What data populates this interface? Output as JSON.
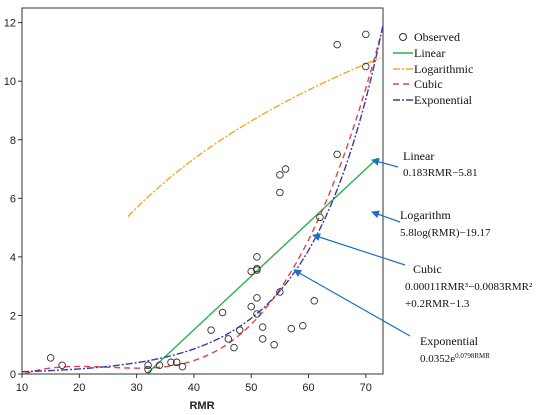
{
  "chart_data": {
    "type": "scatter",
    "title": "",
    "xlabel": "RMR",
    "ylabel": "",
    "xlim": [
      10,
      73
    ],
    "ylim": [
      0,
      12.5
    ],
    "xticks": [
      10,
      20,
      30,
      40,
      50,
      60,
      70
    ],
    "yticks": [
      0,
      2,
      4,
      6,
      8,
      10,
      12
    ],
    "grid": false,
    "legend_position": "top-right",
    "observed": {
      "name": "Observed",
      "color": "#333333",
      "points": [
        {
          "x": 15,
          "y": 0.55
        },
        {
          "x": 17,
          "y": 0.3
        },
        {
          "x": 32,
          "y": 0.15
        },
        {
          "x": 32,
          "y": 0.3
        },
        {
          "x": 34,
          "y": 0.3
        },
        {
          "x": 36,
          "y": 0.4
        },
        {
          "x": 37,
          "y": 0.4
        },
        {
          "x": 38,
          "y": 0.25
        },
        {
          "x": 43,
          "y": 1.5
        },
        {
          "x": 45,
          "y": 2.1
        },
        {
          "x": 46,
          "y": 1.2
        },
        {
          "x": 47,
          "y": 0.9
        },
        {
          "x": 48,
          "y": 1.5
        },
        {
          "x": 50,
          "y": 2.3
        },
        {
          "x": 50,
          "y": 3.5
        },
        {
          "x": 51,
          "y": 3.6
        },
        {
          "x": 51,
          "y": 3.55
        },
        {
          "x": 51,
          "y": 4.0
        },
        {
          "x": 51,
          "y": 2.6
        },
        {
          "x": 51,
          "y": 2.05
        },
        {
          "x": 52,
          "y": 1.2
        },
        {
          "x": 52,
          "y": 1.6
        },
        {
          "x": 54,
          "y": 1.0
        },
        {
          "x": 55,
          "y": 2.8
        },
        {
          "x": 55,
          "y": 6.2
        },
        {
          "x": 55,
          "y": 6.8
        },
        {
          "x": 56,
          "y": 7.0
        },
        {
          "x": 57,
          "y": 1.55
        },
        {
          "x": 59,
          "y": 1.65
        },
        {
          "x": 61,
          "y": 2.5
        },
        {
          "x": 62,
          "y": 5.35
        },
        {
          "x": 65,
          "y": 7.5
        },
        {
          "x": 65,
          "y": 11.25
        },
        {
          "x": 70,
          "y": 10.5
        },
        {
          "x": 70,
          "y": 11.6
        }
      ]
    },
    "fits": [
      {
        "name": "Linear",
        "color": "#2bb24c",
        "dash": "solid"
      },
      {
        "name": "Logarithmic",
        "color": "#f5a623",
        "dash": "dashdot"
      },
      {
        "name": "Cubic",
        "color": "#e2424c",
        "dash": "dash"
      },
      {
        "name": "Exponential",
        "color": "#3a3aa8",
        "dash": "dashdot"
      }
    ],
    "annotations": [
      {
        "title": "Linear",
        "lines": [
          "0.183RMR−5.81"
        ],
        "color": "#1f6fbf"
      },
      {
        "title": "Logarithm",
        "lines": [
          "5.8log(RMR)−19.17"
        ],
        "color": "#1f6fbf"
      },
      {
        "title": "Cubic",
        "lines": [
          "0.00011RMR³−0.0083RMR²",
          "+0.2RMR−1.3"
        ],
        "color": "#1f6fbf"
      },
      {
        "title": "Exponential",
        "lines": [
          "0.0352e"
        ],
        "superscript": "0.0798RMR",
        "color": "#1f6fbf"
      }
    ]
  }
}
